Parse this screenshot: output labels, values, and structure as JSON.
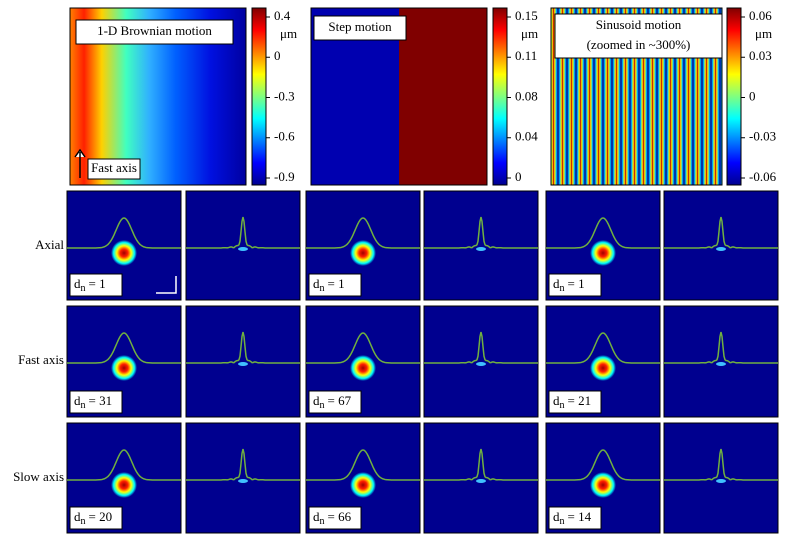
{
  "top_panels": [
    {
      "label_lines": [
        "1-D Brownian motion"
      ],
      "annotation": "Fast axis",
      "colorbar": {
        "ticks": [
          0.4,
          0,
          -0.3,
          -0.6,
          -0.9
        ],
        "unit": "μm"
      }
    },
    {
      "label_lines": [
        "Step motion"
      ],
      "colorbar": {
        "ticks": [
          0.15,
          0.11,
          0.08,
          0.04,
          0
        ],
        "unit": "μm"
      }
    },
    {
      "label_lines": [
        "Sinusoid motion",
        "(zoomed in ~300%)"
      ],
      "colorbar": {
        "ticks": [
          0.06,
          0.03,
          0,
          -0.03,
          -0.06
        ],
        "unit": "μm"
      }
    }
  ],
  "row_labels": [
    "Axial",
    "Fast axis",
    "Slow axis"
  ],
  "dn_labels": [
    {
      "main": "d",
      "sub": "n",
      "value": "= 1"
    },
    {
      "main": "d",
      "sub": "n",
      "value": "= 1"
    },
    {
      "main": "d",
      "sub": "n",
      "value": "= 1"
    },
    {
      "main": "d",
      "sub": "n",
      "value": "= 31"
    },
    {
      "main": "d",
      "sub": "n",
      "value": "= 67"
    },
    {
      "main": "d",
      "sub": "n",
      "value": "= 21"
    },
    {
      "main": "d",
      "sub": "n",
      "value": "= 20"
    },
    {
      "main": "d",
      "sub": "n",
      "value": "= 66"
    },
    {
      "main": "d",
      "sub": "n",
      "value": "= 14"
    }
  ]
}
